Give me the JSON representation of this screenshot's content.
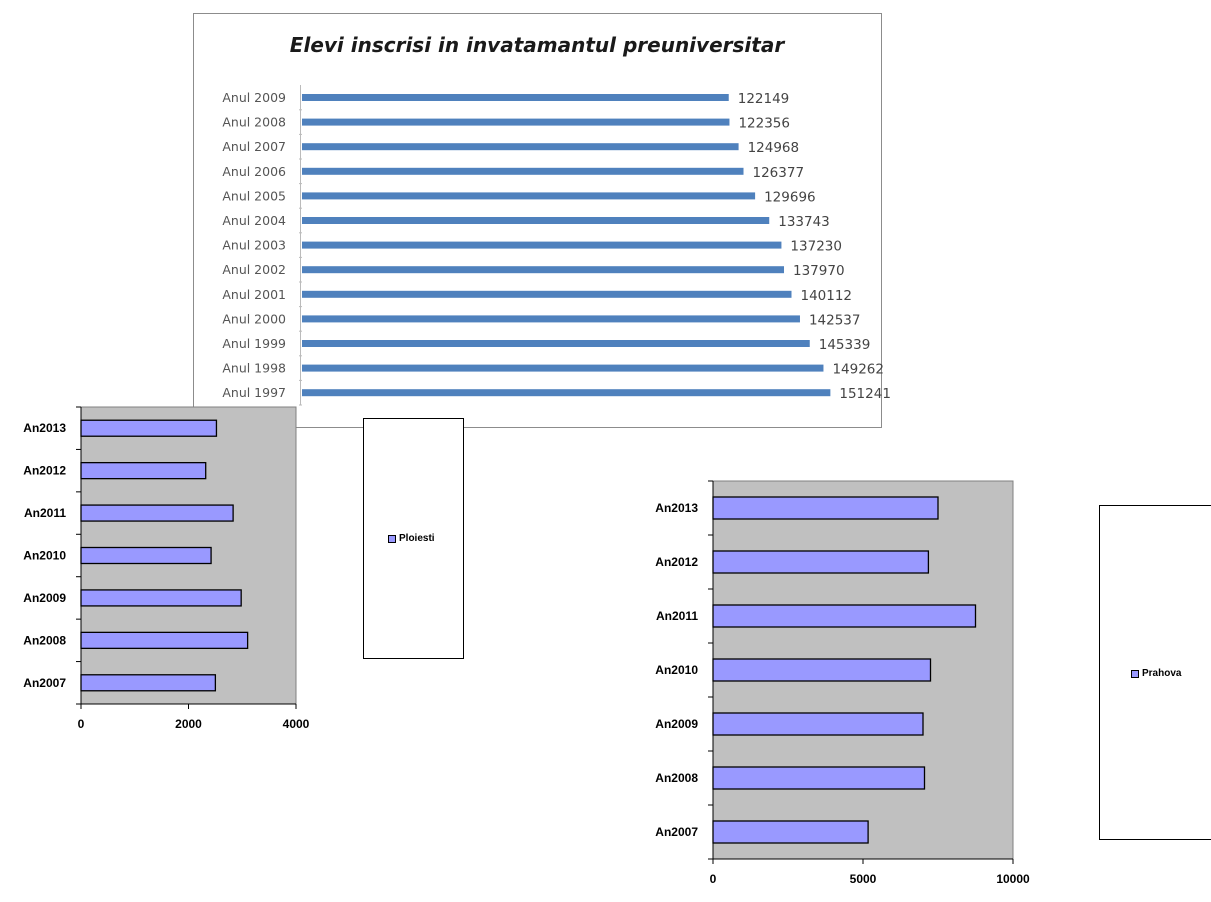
{
  "colors": {
    "chart1_bar": "#4F81BD",
    "small_bar": "#9999FF",
    "plot_bg": "#C0C0C0"
  },
  "chart_data": [
    {
      "type": "bar",
      "orientation": "horizontal",
      "title": "Elevi inscrisi in invatamantul preuniversitar",
      "categories": [
        "Anul 2009",
        "Anul 2008",
        "Anul 2007",
        "Anul 2006",
        "Anul 2005",
        "Anul 2004",
        "Anul 2003",
        "Anul 2002",
        "Anul 2001",
        "Anul 2000",
        "Anul 1999",
        "Anul 1998",
        "Anul 1997"
      ],
      "values": [
        122149,
        122356,
        124968,
        126377,
        129696,
        133743,
        137230,
        137970,
        140112,
        142537,
        145339,
        149262,
        151241
      ],
      "value_labels": [
        "122149",
        "122356",
        "124968",
        "126377",
        "129696",
        "133743",
        "137230",
        "137970",
        "140112",
        "142537",
        "145339",
        "149262",
        "151241"
      ],
      "data_labels": true,
      "grid": false
    },
    {
      "type": "bar",
      "orientation": "horizontal",
      "categories": [
        "An2013",
        "An2012",
        "An2011",
        "An2010",
        "An2009",
        "An2008",
        "An2007"
      ],
      "series": [
        {
          "name": "Ploiesti",
          "values": [
            2520,
            2320,
            2830,
            2420,
            2980,
            3100,
            2500
          ]
        }
      ],
      "xlim": [
        0,
        4000
      ],
      "xticks": [
        "0",
        "2000",
        "4000"
      ],
      "legend": "right",
      "grid": false
    },
    {
      "type": "bar",
      "orientation": "horizontal",
      "categories": [
        "An2013",
        "An2012",
        "An2011",
        "An2010",
        "An2009",
        "An2008",
        "An2007"
      ],
      "series": [
        {
          "name": "Prahova",
          "values": [
            7500,
            7180,
            8750,
            7250,
            7000,
            7050,
            5170
          ]
        }
      ],
      "xlim": [
        0,
        10000
      ],
      "xticks": [
        "0",
        "5000",
        "10000"
      ],
      "legend": "right",
      "grid": false
    }
  ]
}
